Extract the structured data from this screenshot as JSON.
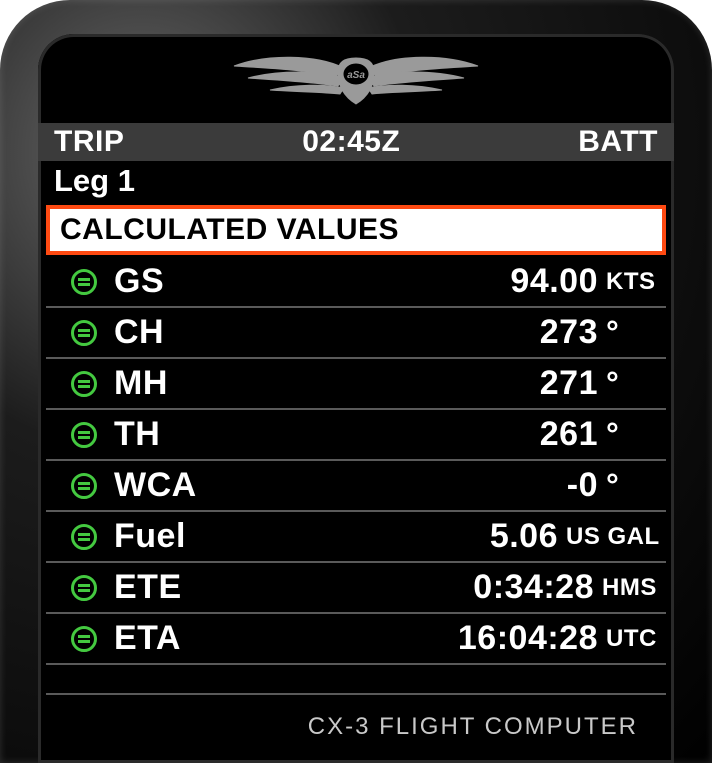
{
  "colors": {
    "device_bg_center": "#6a6a6a",
    "device_bg_edge": "#000000",
    "screen_bg": "#000000",
    "status_bg": "#3b3b3b",
    "text": "#ffffff",
    "divider": "#5a5a5a",
    "highlight_border": "#ff4a12",
    "highlight_bg": "#ffffff",
    "highlight_text": "#000000",
    "icon_green": "#44c940",
    "footer_text": "#c9c9c9",
    "logo_fill": "#9a9a9a"
  },
  "status": {
    "left": "TRIP",
    "center": "02:45Z",
    "right": "BATT"
  },
  "leg": "Leg 1",
  "section_title": "CALCULATED VALUES",
  "rows": [
    {
      "icon": "calc-icon",
      "label": "GS",
      "value": "94.00",
      "unit": "KTS",
      "unit_class": "unit-kts"
    },
    {
      "icon": "calc-icon",
      "label": "CH",
      "value": "273",
      "unit": "°",
      "unit_class": "unit-deg"
    },
    {
      "icon": "calc-icon",
      "label": "MH",
      "value": "271",
      "unit": "°",
      "unit_class": "unit-deg"
    },
    {
      "icon": "calc-icon",
      "label": "TH",
      "value": "261",
      "unit": "°",
      "unit_class": "unit-deg"
    },
    {
      "icon": "calc-icon",
      "label": "WCA",
      "value": "-0",
      "unit": "°",
      "unit_class": "unit-deg"
    },
    {
      "icon": "calc-icon",
      "label": "Fuel",
      "value": "5.06",
      "unit": "US GAL",
      "unit_class": "unit-gal"
    },
    {
      "icon": "calc-icon",
      "label": "ETE",
      "value": "0:34:28",
      "unit": "HMS",
      "unit_class": "unit-hms"
    },
    {
      "icon": "calc-icon",
      "label": "ETA",
      "value": "16:04:28",
      "unit": "UTC",
      "unit_class": "unit-utc"
    }
  ],
  "footer": "CX-3 FLIGHT COMPUTER",
  "logo": {
    "text": "ASA"
  }
}
